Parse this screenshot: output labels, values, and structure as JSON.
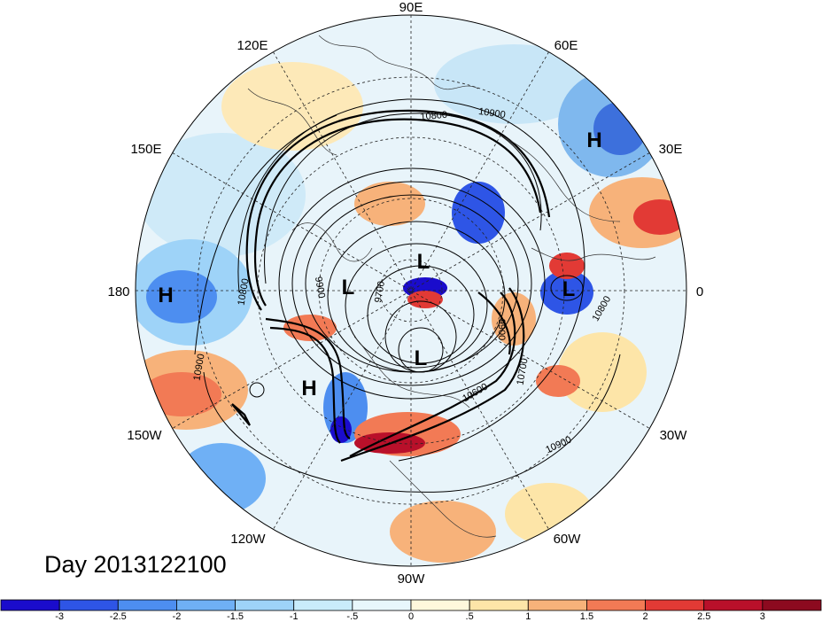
{
  "title": "Day 2013122100",
  "longitude_labels": [
    {
      "name": "lon-90e",
      "text": "90E"
    },
    {
      "name": "lon-120e",
      "text": "120E"
    },
    {
      "name": "lon-60e",
      "text": "60E"
    },
    {
      "name": "lon-150e",
      "text": "150E"
    },
    {
      "name": "lon-30e",
      "text": "30E"
    },
    {
      "name": "lon-180",
      "text": "180"
    },
    {
      "name": "lon-0",
      "text": "0"
    },
    {
      "name": "lon-150w",
      "text": "150W"
    },
    {
      "name": "lon-30w",
      "text": "30W"
    },
    {
      "name": "lon-120w",
      "text": "120W"
    },
    {
      "name": "lon-60w",
      "text": "60W"
    },
    {
      "name": "lon-90w",
      "text": "90W"
    }
  ],
  "pressure_centers": [
    {
      "name": "high-eurasia",
      "text": "H"
    },
    {
      "name": "high-pacific-west",
      "text": "H"
    },
    {
      "name": "high-pacific-east",
      "text": "H"
    },
    {
      "name": "low-siberia",
      "text": "L"
    },
    {
      "name": "low-arctic",
      "text": "L"
    },
    {
      "name": "low-europe",
      "text": "L"
    },
    {
      "name": "low-canada",
      "text": "L"
    }
  ],
  "contour_labels": [
    "10800",
    "10900",
    "10800",
    "10900",
    "9900",
    "9700",
    "9900",
    "10800",
    "10700",
    "10600",
    "10900"
  ],
  "colorbar": {
    "ticks": [
      "-3",
      "-2.5",
      "-2",
      "-1.5",
      "-1",
      "-.5",
      "0",
      ".5",
      "1",
      "1.5",
      "2",
      "2.5",
      "3"
    ],
    "colors": [
      "#1a0ccc",
      "#2e55e6",
      "#4d8ef0",
      "#6fb0f5",
      "#9ed3f8",
      "#c9ecfb",
      "#e8f7fc",
      "#fff8dc",
      "#fde5a8",
      "#f7b27a",
      "#f27a55",
      "#e23a35",
      "#b9102a",
      "#8c0a1f"
    ]
  }
}
